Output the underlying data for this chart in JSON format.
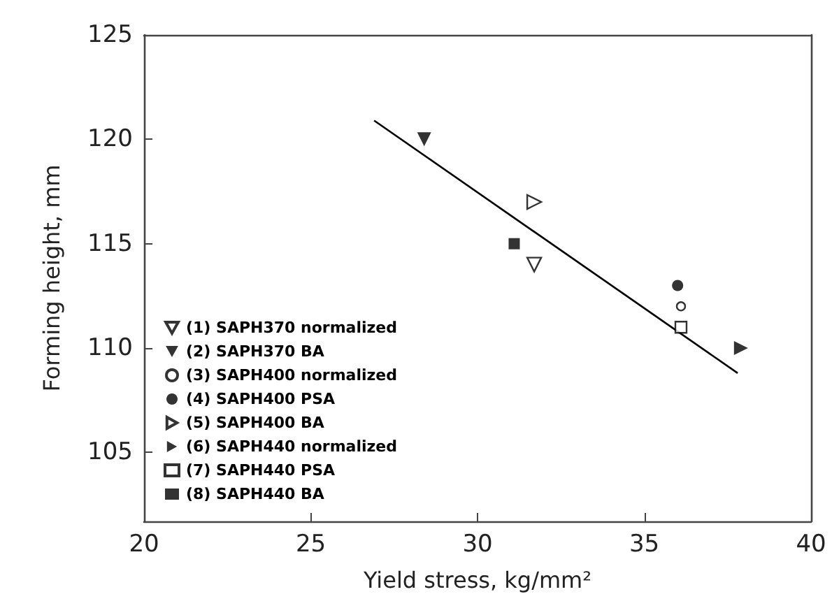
{
  "chart_data": {
    "type": "scatter",
    "xlabel": "Yield stress, kg/mm²",
    "ylabel": "Forming height, mm",
    "xlim": [
      20,
      40
    ],
    "xticks": [
      20,
      25,
      30,
      35,
      40
    ],
    "ylim": [
      101.7,
      125
    ],
    "yticks": [
      105,
      110,
      115,
      120,
      125
    ],
    "grid": false,
    "legend": "bottom left",
    "series": [
      {
        "name": "(1) SAPH370 normalized",
        "color": "#000000",
        "marker": "triangle",
        "x": [
          31.7
        ],
        "values": [
          114
        ]
      },
      {
        "name": "(2) SAPH370 BA",
        "color": "#000000",
        "marker": "triangle",
        "x": [
          28.4
        ],
        "values": [
          120
        ]
      },
      {
        "name": "(3) SAPH400 normalized",
        "color": "#000000",
        "marker": "circle",
        "x": [
          36.1
        ],
        "values": [
          112
        ]
      },
      {
        "name": "(4) SAPH400 PSA",
        "color": "#000000",
        "marker": "circle",
        "x": [
          36.0
        ],
        "values": [
          113
        ]
      },
      {
        "name": "(5) SAPH400 BA",
        "color": "#000000",
        "marker": "triangle",
        "x": [
          31.7
        ],
        "values": [
          117
        ]
      },
      {
        "name": "(6) SAPH440 normalized",
        "color": "#000000",
        "marker": "triangle",
        "x": [
          37.9
        ],
        "values": [
          110
        ]
      },
      {
        "name": "(7) SAPH440 PSA",
        "color": "#000000",
        "marker": "square",
        "x": [
          36.1
        ],
        "values": [
          111
        ]
      },
      {
        "name": "(8) SAPH440 BA",
        "color": "#000000",
        "marker": "square",
        "x": [
          31.1
        ],
        "values": [
          115
        ]
      },
      {
        "type": "line",
        "color": "#000000",
        "marker": "none",
        "line_style": "solid",
        "x": [
          26.9,
          37.8
        ],
        "values": [
          120.9,
          108.8
        ]
      }
    ]
  }
}
